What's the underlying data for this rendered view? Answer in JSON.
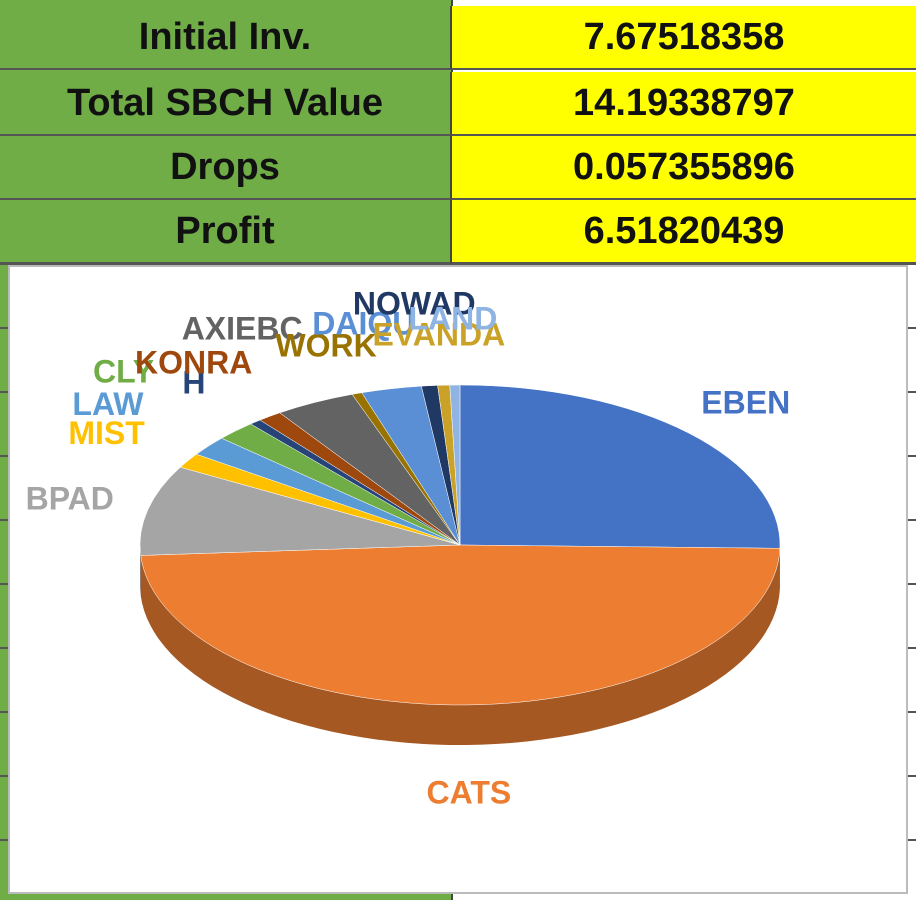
{
  "table": {
    "rows": [
      [
        "Initial Inv.",
        "7.67518358"
      ],
      [
        "Total SBCH Value",
        "14.19338797"
      ],
      [
        "Drops",
        "0.057355896"
      ],
      [
        "Profit",
        "6.51820439"
      ]
    ]
  },
  "chart_data": {
    "type": "pie",
    "categories": [
      "EBEN",
      "CATS",
      "BPAD",
      "MIST",
      "LAW",
      "CLY",
      "H",
      "KONRA",
      "AXIEBC",
      "WORK",
      "DAIQU",
      "NOWAD",
      "EVANDA",
      "LAND"
    ],
    "values": [
      25,
      48,
      9,
      1.5,
      2,
      2,
      0.6,
      1.2,
      4,
      0.5,
      3,
      0.8,
      0.6,
      0.5
    ],
    "colors": [
      "#4472c4",
      "#ed7d31",
      "#a5a5a5",
      "#ffc000",
      "#5b9bd5",
      "#70ad47",
      "#264478",
      "#9e480e",
      "#636363",
      "#997300",
      "#5b8fd5",
      "#1f3864",
      "#c9a227",
      "#8fb4e3"
    ]
  }
}
